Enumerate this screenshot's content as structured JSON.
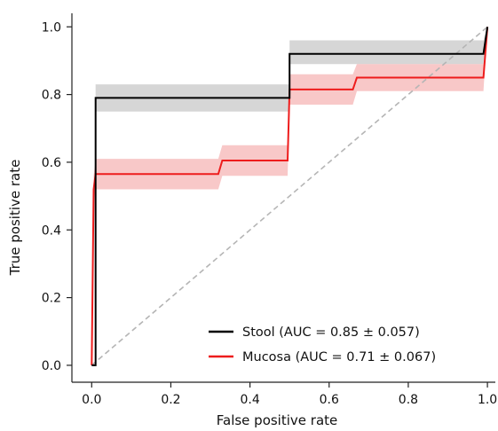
{
  "chart_data": {
    "type": "line",
    "title": "",
    "xlabel": "False positive rate",
    "ylabel": "True positive rate",
    "xlim": [
      -0.05,
      1.02
    ],
    "ylim": [
      -0.05,
      1.04
    ],
    "xticks": [
      0.0,
      0.2,
      0.4,
      0.6,
      0.8,
      1.0
    ],
    "yticks": [
      0.0,
      0.2,
      0.4,
      0.6,
      0.8,
      1.0
    ],
    "xtick_labels": [
      "0.0",
      "0.2",
      "0.4",
      "0.6",
      "0.8",
      "1.0"
    ],
    "ytick_labels": [
      "0.0",
      "0.2",
      "0.4",
      "0.6",
      "0.8",
      "1.0"
    ],
    "grid": false,
    "legend_position": "lower-right",
    "diagonal": {
      "x": [
        0,
        1
      ],
      "y": [
        0,
        1
      ],
      "color": "#b5b5b5",
      "style": "dashed"
    },
    "series": [
      {
        "name": "Stool (AUC = 0.85 ± 0.057)",
        "color": "#000000",
        "band_color": "#c8c8c8",
        "x": [
          0.0,
          0.01,
          0.01,
          0.5,
          0.5,
          0.99,
          1.0
        ],
        "y": [
          0.0,
          0.0,
          0.79,
          0.79,
          0.92,
          0.92,
          1.0
        ],
        "band_upper": [
          0.0,
          0.0,
          0.83,
          0.83,
          0.96,
          0.96,
          1.0
        ],
        "band_lower": [
          0.0,
          0.0,
          0.75,
          0.75,
          0.89,
          0.89,
          1.0
        ]
      },
      {
        "name": "Mucosa (AUC = 0.71 ± 0.067)",
        "color": "#ee1c1c",
        "band_color": "#f6b6b6",
        "x": [
          0.0,
          0.005,
          0.01,
          0.32,
          0.33,
          0.495,
          0.5,
          0.66,
          0.67,
          0.99,
          1.0
        ],
        "y": [
          0.0,
          0.52,
          0.565,
          0.565,
          0.605,
          0.605,
          0.815,
          0.815,
          0.85,
          0.85,
          1.0
        ],
        "band_upper": [
          0.0,
          0.56,
          0.61,
          0.61,
          0.65,
          0.65,
          0.86,
          0.86,
          0.89,
          0.89,
          1.0
        ],
        "band_lower": [
          0.0,
          0.48,
          0.52,
          0.52,
          0.56,
          0.56,
          0.77,
          0.77,
          0.81,
          0.81,
          1.0
        ]
      }
    ]
  }
}
